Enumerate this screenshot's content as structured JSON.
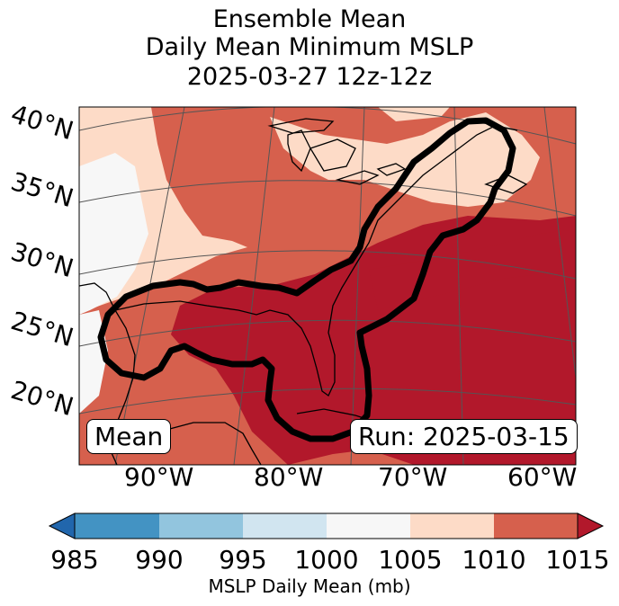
{
  "title": {
    "line1": "Ensemble Mean",
    "line2": "Daily Mean Minimum MSLP",
    "line3": "2025-03-27 12z-12z"
  },
  "map": {
    "lat_labels": [
      "40°N",
      "35°N",
      "30°N",
      "25°N",
      "20°N"
    ],
    "lon_labels": [
      "90°W",
      "80°W",
      "70°W",
      "60°W"
    ],
    "mean_badge": "Mean",
    "run_badge": "Run: 2025-03-15",
    "contour_color": "#000000",
    "coastline_color": "#000000",
    "gridline_color": "#555555"
  },
  "colorbar": {
    "label": "MSLP Daily Mean (mb)",
    "ticks": [
      "985",
      "990",
      "995",
      "1000",
      "1005",
      "1010",
      "1015"
    ],
    "bins": [
      {
        "range": "<985",
        "color": "#2166ac"
      },
      {
        "range": "985-990",
        "color": "#4393c3"
      },
      {
        "range": "990-995",
        "color": "#92c5de"
      },
      {
        "range": "995-1000",
        "color": "#d1e5f0"
      },
      {
        "range": "1000-1005",
        "color": "#f7f7f7"
      },
      {
        "range": "1005-1010",
        "color": "#fddbc7"
      },
      {
        "range": "1010-1015",
        "color": "#d6604d"
      },
      {
        "range": ">1015",
        "color": "#b2182b"
      }
    ]
  }
}
